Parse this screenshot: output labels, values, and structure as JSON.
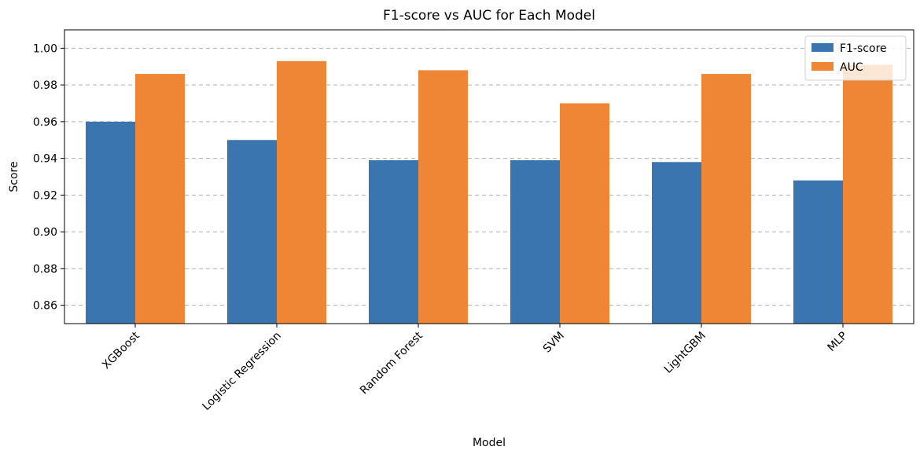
{
  "chart_data": {
    "type": "bar",
    "title": "F1-score vs AUC for Each Model",
    "xlabel": "Model",
    "ylabel": "Score",
    "categories": [
      "XGBoost",
      "Logistic Regression",
      "Random Forest",
      "SVM",
      "LightGBM",
      "MLP"
    ],
    "series": [
      {
        "name": "F1-score",
        "color": "#3a75af",
        "values": [
          0.96,
          0.95,
          0.939,
          0.939,
          0.938,
          0.928
        ]
      },
      {
        "name": "AUC",
        "color": "#ef8636",
        "values": [
          0.986,
          0.993,
          0.988,
          0.97,
          0.986,
          0.991
        ]
      }
    ],
    "ylim": [
      0.85,
      1.01
    ],
    "yticks": [
      "0.86",
      "0.88",
      "0.90",
      "0.92",
      "0.94",
      "0.96",
      "0.98",
      "1.00"
    ],
    "grid": "y-dashed",
    "legend_position": "top-right"
  }
}
